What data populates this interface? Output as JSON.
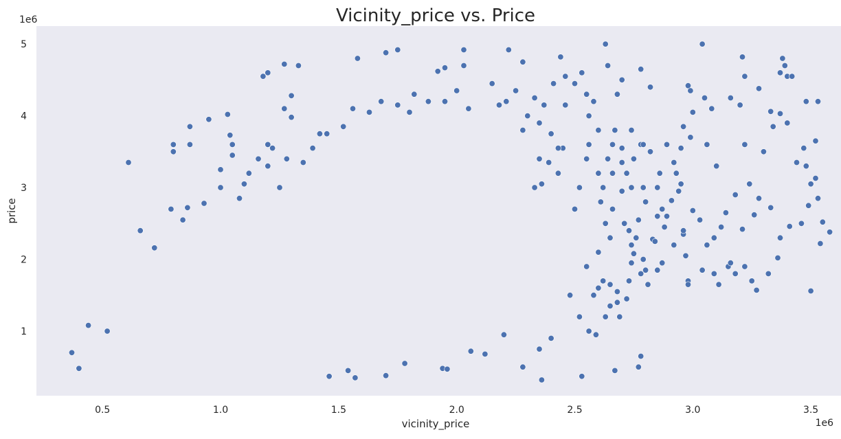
{
  "chart_data": {
    "type": "scatter",
    "title": "Vicinity_price vs. Price",
    "xlabel": "vicinity_price",
    "ylabel": "price",
    "x_offset_label": "1e6",
    "y_offset_label": "1e6",
    "xlim": [
      0.22,
      3.68
    ],
    "ylim": [
      0.1,
      5.25
    ],
    "x_ticks": [
      0.5,
      1.0,
      1.5,
      2.0,
      2.5,
      3.0,
      3.5
    ],
    "x_tick_labels": [
      "0.5",
      "1.0",
      "1.5",
      "2.0",
      "2.5",
      "3.0",
      "3.5"
    ],
    "y_ticks": [
      1,
      2,
      3,
      4,
      5
    ],
    "y_tick_labels": [
      "1",
      "2",
      "3",
      "4",
      "5"
    ],
    "grid": false,
    "background_color": "#eaeaf2",
    "marker_color": "#4c72b0",
    "marker_edge_color": "#ffffff",
    "series": [
      {
        "name": "",
        "points": [
          [
            0.37,
            0.7
          ],
          [
            0.44,
            1.08
          ],
          [
            0.4,
            0.48
          ],
          [
            0.52,
            1.0
          ],
          [
            0.61,
            3.35
          ],
          [
            0.66,
            2.4
          ],
          [
            0.72,
            2.16
          ],
          [
            0.79,
            2.7
          ],
          [
            0.8,
            3.6
          ],
          [
            0.8,
            3.5
          ],
          [
            0.87,
            3.6
          ],
          [
            0.87,
            3.85
          ],
          [
            0.95,
            3.95
          ],
          [
            1.03,
            4.02
          ],
          [
            1.04,
            3.73
          ],
          [
            1.05,
            3.6
          ],
          [
            1.18,
            4.55
          ],
          [
            1.2,
            4.6
          ],
          [
            1.27,
            4.72
          ],
          [
            1.33,
            4.7
          ],
          [
            1.27,
            4.1
          ],
          [
            1.3,
            4.28
          ],
          [
            1.3,
            3.98
          ],
          [
            1.2,
            3.6
          ],
          [
            1.0,
            3.0
          ],
          [
            0.93,
            2.78
          ],
          [
            0.86,
            2.72
          ],
          [
            0.84,
            2.55
          ],
          [
            1.58,
            4.8
          ],
          [
            1.7,
            4.88
          ],
          [
            1.75,
            4.92
          ],
          [
            1.92,
            4.62
          ],
          [
            1.95,
            4.67
          ],
          [
            2.03,
            4.92
          ],
          [
            2.22,
            4.92
          ],
          [
            2.03,
            4.7
          ],
          [
            2.44,
            4.82
          ],
          [
            2.53,
            4.6
          ],
          [
            2.63,
            5.0
          ],
          [
            2.64,
            4.7
          ],
          [
            2.78,
            4.65
          ],
          [
            2.82,
            4.4
          ],
          [
            2.28,
            4.75
          ],
          [
            2.46,
            4.55
          ],
          [
            3.04,
            5.0
          ],
          [
            3.21,
            4.82
          ],
          [
            3.38,
            4.8
          ],
          [
            3.39,
            4.7
          ],
          [
            3.4,
            4.55
          ],
          [
            3.42,
            4.55
          ],
          [
            3.37,
            4.6
          ],
          [
            3.22,
            4.55
          ],
          [
            3.28,
            4.38
          ],
          [
            2.98,
            4.42
          ],
          [
            2.99,
            4.35
          ],
          [
            3.05,
            4.25
          ],
          [
            3.16,
            4.25
          ],
          [
            3.2,
            4.15
          ],
          [
            3.48,
            4.2
          ],
          [
            3.53,
            4.2
          ],
          [
            3.33,
            4.06
          ],
          [
            3.37,
            4.03
          ],
          [
            3.08,
            4.1
          ],
          [
            3.0,
            4.05
          ],
          [
            2.96,
            3.85
          ],
          [
            2.99,
            3.7
          ],
          [
            2.95,
            3.55
          ],
          [
            3.06,
            3.6
          ],
          [
            3.1,
            3.3
          ],
          [
            3.22,
            3.6
          ],
          [
            3.3,
            3.5
          ],
          [
            3.34,
            3.85
          ],
          [
            3.4,
            3.9
          ],
          [
            3.44,
            3.35
          ],
          [
            3.47,
            3.55
          ],
          [
            3.52,
            3.65
          ],
          [
            3.48,
            3.3
          ],
          [
            3.5,
            3.05
          ],
          [
            3.52,
            3.13
          ],
          [
            3.53,
            2.85
          ],
          [
            3.55,
            2.52
          ],
          [
            3.58,
            2.38
          ],
          [
            3.54,
            2.22
          ],
          [
            3.49,
            2.75
          ],
          [
            3.46,
            2.5
          ],
          [
            3.41,
            2.46
          ],
          [
            3.37,
            2.3
          ],
          [
            3.33,
            2.72
          ],
          [
            3.28,
            2.85
          ],
          [
            3.26,
            2.62
          ],
          [
            3.21,
            2.42
          ],
          [
            3.24,
            3.05
          ],
          [
            3.18,
            2.9
          ],
          [
            3.14,
            2.65
          ],
          [
            3.12,
            2.45
          ],
          [
            3.09,
            2.3
          ],
          [
            3.06,
            2.2
          ],
          [
            3.03,
            2.55
          ],
          [
            3.0,
            2.68
          ],
          [
            2.96,
            2.35
          ],
          [
            2.92,
            2.2
          ],
          [
            2.97,
            2.05
          ],
          [
            2.98,
            1.7
          ],
          [
            2.98,
            1.65
          ],
          [
            3.04,
            1.85
          ],
          [
            3.11,
            1.65
          ],
          [
            3.15,
            1.9
          ],
          [
            3.16,
            1.95
          ],
          [
            3.25,
            1.7
          ],
          [
            3.27,
            1.57
          ],
          [
            3.32,
            1.8
          ],
          [
            3.36,
            2.02
          ],
          [
            3.5,
            1.56
          ],
          [
            3.22,
            1.9
          ],
          [
            3.18,
            1.8
          ],
          [
            3.09,
            1.8
          ],
          [
            2.87,
            1.95
          ],
          [
            2.85,
            1.85
          ],
          [
            2.81,
            1.65
          ],
          [
            2.74,
            2.2
          ],
          [
            2.71,
            2.5
          ],
          [
            2.7,
            2.95
          ],
          [
            2.74,
            3.0
          ],
          [
            2.79,
            3.0
          ],
          [
            2.78,
            3.6
          ],
          [
            2.74,
            3.8
          ],
          [
            2.79,
            3.6
          ],
          [
            2.82,
            3.5
          ],
          [
            2.86,
            3.2
          ],
          [
            2.89,
            3.6
          ],
          [
            2.93,
            3.2
          ],
          [
            2.96,
            2.4
          ],
          [
            2.94,
            2.95
          ],
          [
            2.89,
            2.6
          ],
          [
            2.83,
            2.28
          ],
          [
            2.79,
            2.0
          ],
          [
            2.75,
            2.08
          ],
          [
            2.73,
            1.7
          ],
          [
            2.68,
            1.55
          ],
          [
            2.68,
            1.4
          ],
          [
            2.69,
            1.2
          ],
          [
            2.67,
            0.45
          ],
          [
            2.77,
            0.5
          ],
          [
            2.78,
            0.65
          ],
          [
            2.36,
            0.32
          ],
          [
            2.53,
            0.37
          ],
          [
            2.28,
            0.5
          ],
          [
            2.12,
            0.68
          ],
          [
            2.06,
            0.72
          ],
          [
            1.94,
            0.48
          ],
          [
            1.96,
            0.47
          ],
          [
            1.7,
            0.38
          ],
          [
            1.57,
            0.35
          ],
          [
            1.46,
            0.37
          ],
          [
            1.78,
            0.55
          ],
          [
            1.54,
            0.45
          ],
          [
            2.2,
            0.95
          ],
          [
            2.35,
            0.75
          ],
          [
            2.4,
            0.9
          ],
          [
            2.48,
            1.5
          ],
          [
            2.52,
            1.2
          ],
          [
            2.58,
            1.5
          ],
          [
            2.62,
            1.7
          ],
          [
            2.6,
            1.6
          ],
          [
            2.55,
            1.9
          ],
          [
            2.6,
            2.1
          ],
          [
            2.65,
            2.3
          ],
          [
            2.63,
            2.5
          ],
          [
            2.66,
            2.7
          ],
          [
            2.61,
            2.8
          ],
          [
            2.62,
            3.0
          ],
          [
            2.6,
            3.2
          ],
          [
            2.66,
            3.2
          ],
          [
            2.64,
            3.4
          ],
          [
            2.66,
            3.6
          ],
          [
            2.67,
            3.8
          ],
          [
            2.6,
            3.8
          ],
          [
            2.56,
            3.6
          ],
          [
            2.55,
            3.4
          ],
          [
            2.52,
            3.0
          ],
          [
            2.5,
            2.7
          ],
          [
            2.45,
            3.55
          ],
          [
            2.4,
            3.75
          ],
          [
            2.35,
            3.9
          ],
          [
            2.3,
            4.0
          ],
          [
            2.28,
            3.8
          ],
          [
            2.25,
            4.35
          ],
          [
            2.21,
            4.2
          ],
          [
            2.18,
            4.15
          ],
          [
            2.15,
            4.45
          ],
          [
            2.05,
            4.1
          ],
          [
            2.0,
            4.35
          ],
          [
            1.95,
            4.2
          ],
          [
            1.88,
            4.2
          ],
          [
            1.82,
            4.3
          ],
          [
            1.8,
            4.05
          ],
          [
            1.75,
            4.15
          ],
          [
            1.68,
            4.2
          ],
          [
            1.63,
            4.05
          ],
          [
            1.56,
            4.1
          ],
          [
            1.52,
            3.85
          ],
          [
            1.45,
            3.75
          ],
          [
            1.42,
            3.75
          ],
          [
            1.39,
            3.55
          ],
          [
            1.35,
            3.35
          ],
          [
            1.28,
            3.4
          ],
          [
            1.22,
            3.55
          ],
          [
            1.16,
            3.4
          ],
          [
            1.12,
            3.2
          ],
          [
            1.1,
            3.05
          ],
          [
            1.08,
            2.85
          ],
          [
            2.33,
            4.25
          ],
          [
            2.37,
            4.15
          ],
          [
            2.41,
            4.45
          ],
          [
            2.46,
            4.15
          ],
          [
            2.5,
            4.45
          ],
          [
            2.55,
            4.3
          ],
          [
            2.58,
            4.2
          ],
          [
            2.43,
            3.55
          ],
          [
            2.39,
            3.35
          ],
          [
            2.36,
            3.05
          ],
          [
            2.33,
            3.0
          ],
          [
            2.35,
            3.4
          ],
          [
            2.43,
            3.2
          ],
          [
            1.2,
            3.3
          ],
          [
            1.25,
            3.0
          ],
          [
            1.05,
            3.45
          ],
          [
            1.0,
            3.25
          ],
          [
            2.7,
            4.5
          ],
          [
            2.68,
            4.3
          ],
          [
            2.56,
            4.0
          ],
          [
            2.8,
            2.8
          ],
          [
            2.85,
            2.6
          ],
          [
            2.88,
            2.45
          ],
          [
            2.84,
            2.25
          ],
          [
            2.85,
            3.0
          ],
          [
            2.87,
            2.7
          ],
          [
            2.91,
            2.82
          ],
          [
            2.95,
            3.05
          ],
          [
            2.92,
            3.35
          ],
          [
            2.75,
            3.4
          ],
          [
            2.72,
            3.2
          ],
          [
            2.7,
            3.55
          ],
          [
            2.7,
            3.35
          ],
          [
            2.73,
            2.4
          ],
          [
            2.77,
            2.55
          ],
          [
            2.76,
            2.3
          ],
          [
            2.8,
            1.85
          ],
          [
            2.78,
            1.8
          ],
          [
            2.72,
            1.45
          ],
          [
            2.74,
            1.95
          ],
          [
            2.65,
            1.65
          ],
          [
            2.63,
            1.2
          ],
          [
            2.65,
            1.35
          ],
          [
            2.59,
            0.95
          ],
          [
            2.56,
            1.0
          ]
        ]
      }
    ]
  }
}
